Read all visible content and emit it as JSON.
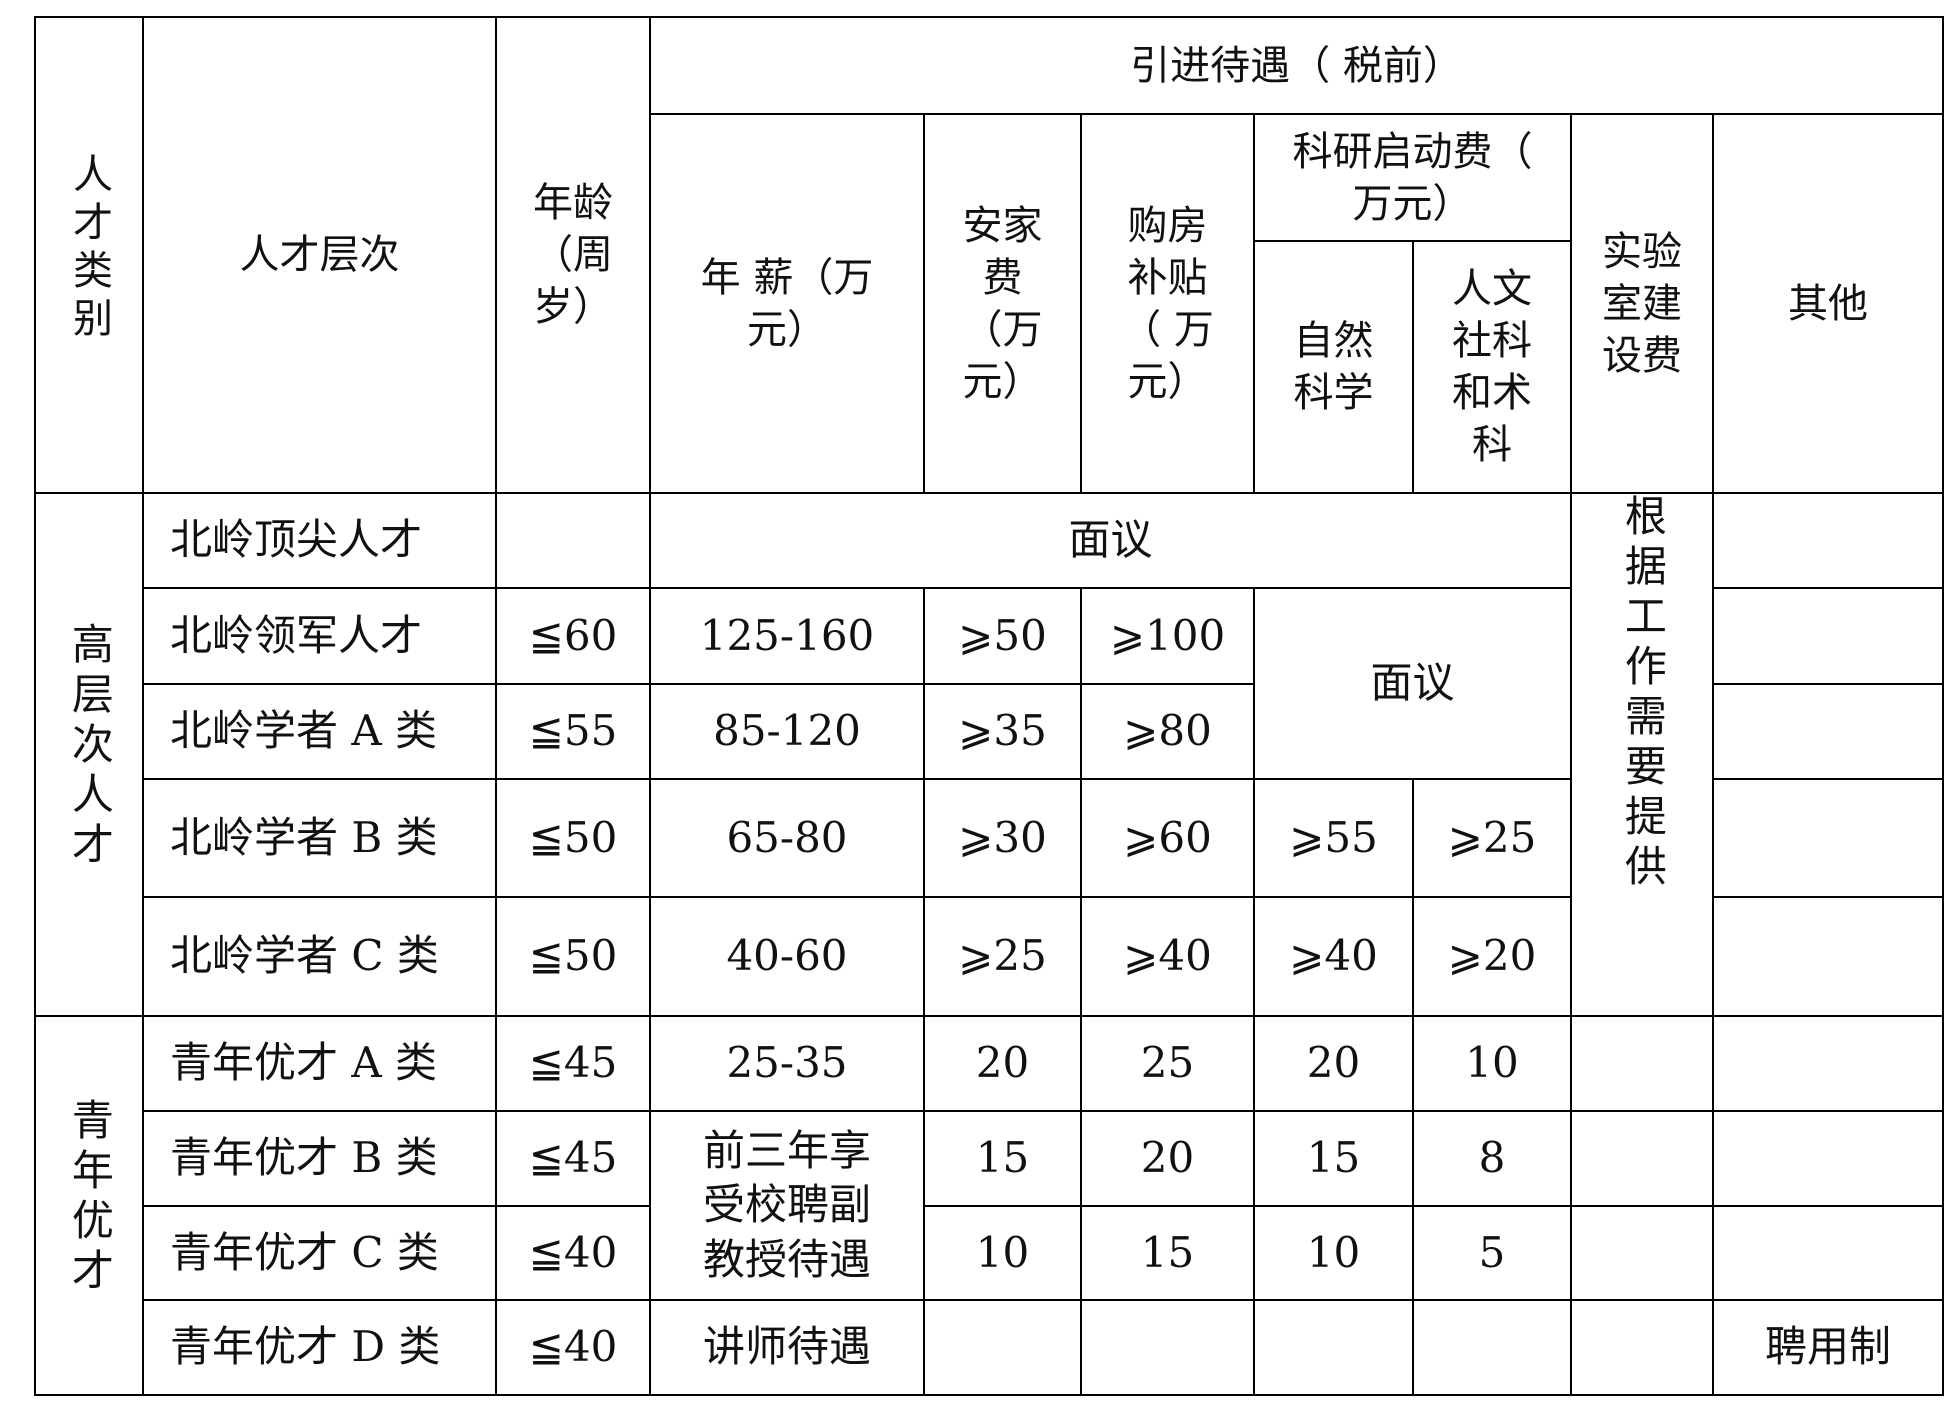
{
  "header": {
    "category": "人才类别",
    "level": "人才层次",
    "age": "年龄（周岁）",
    "benefits": "引进待遇（ 税前）",
    "salary": "年 薪（万元）",
    "settling": "安家费（万元）",
    "housing": "购房补贴（ 万元）",
    "research": "科研启动费（ 万元）",
    "natural": "自然科学",
    "humanities": "人文社科和术科",
    "lab": "实验室建设费",
    "other": "其他"
  },
  "groups": {
    "senior": "高层次人才",
    "young": "青年优才",
    "lab_note": "根据工作需要提供",
    "negotiable": "面议",
    "young_bc_salary": "前三年享受校聘副教授待遇"
  },
  "rows": [
    {
      "level": "北岭顶尖人才",
      "age": "",
      "salary": "",
      "settling": "",
      "housing": "",
      "natural": "",
      "humanities": "",
      "lab": "",
      "other": ""
    },
    {
      "level": "北岭领军人才",
      "age": "≦60",
      "salary": "125-160",
      "settling": "⩾50",
      "housing": "⩾100",
      "natural": "",
      "humanities": "",
      "lab": "",
      "other": ""
    },
    {
      "level": "北岭学者 A 类",
      "age": "≦55",
      "salary": "85-120",
      "settling": "⩾35",
      "housing": "⩾80",
      "natural": "",
      "humanities": "",
      "lab": "",
      "other": ""
    },
    {
      "level": "北岭学者 B 类",
      "age": "≦50",
      "salary": "65-80",
      "settling": "⩾30",
      "housing": "⩾60",
      "natural": "⩾55",
      "humanities": "⩾25",
      "lab": "",
      "other": ""
    },
    {
      "level": "北岭学者 C 类",
      "age": "≦50",
      "salary": "40-60",
      "settling": "⩾25",
      "housing": "⩾40",
      "natural": "⩾40",
      "humanities": "⩾20",
      "lab": "",
      "other": ""
    },
    {
      "level": "青年优才 A 类",
      "age": "≦45",
      "salary": "25-35",
      "settling": "20",
      "housing": "25",
      "natural": "20",
      "humanities": "10",
      "lab": "",
      "other": ""
    },
    {
      "level": "青年优才 B 类",
      "age": "≦45",
      "salary": "",
      "settling": "15",
      "housing": "20",
      "natural": "15",
      "humanities": "8",
      "lab": "",
      "other": ""
    },
    {
      "level": "青年优才 C 类",
      "age": "≦40",
      "salary": "",
      "settling": "10",
      "housing": "15",
      "natural": "10",
      "humanities": "5",
      "lab": "",
      "other": ""
    },
    {
      "level": "青年优才 D 类",
      "age": "≦40",
      "salary": "讲师待遇",
      "settling": "",
      "housing": "",
      "natural": "",
      "humanities": "",
      "lab": "",
      "other": "聘用制"
    }
  ]
}
